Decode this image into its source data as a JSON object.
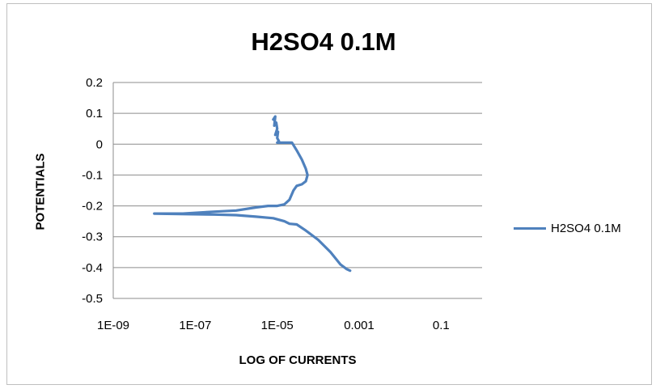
{
  "chart_data": {
    "type": "line",
    "title": "H2SO4 0.1M",
    "xlabel": "LOG OF CURRENTS",
    "ylabel": "POTENTIALS",
    "x_scale": "log",
    "xlim": [
      1e-09,
      1
    ],
    "ylim": [
      -0.5,
      0.2
    ],
    "x_ticks": [
      1e-09,
      1e-07,
      1e-05,
      0.001,
      0.1
    ],
    "x_tick_labels": [
      "1E-09",
      "1E-07",
      "1E-05",
      "0.001",
      "0.1"
    ],
    "y_ticks": [
      0.2,
      0.1,
      0,
      -0.1,
      -0.2,
      -0.3,
      -0.4,
      -0.5
    ],
    "y_tick_labels": [
      "0.2",
      "0.1",
      "0",
      "-0.1",
      "-0.2",
      "-0.3",
      "-0.4",
      "-0.5"
    ],
    "grid": "horizontal",
    "legend": "right",
    "series": [
      {
        "name": "H2SO4 0.1M",
        "color": "#4f81bd",
        "points": [
          [
            8e-06,
            0.08
          ],
          [
            9e-06,
            0.09
          ],
          [
            8.5e-06,
            0.06
          ],
          [
            9.5e-06,
            0.07
          ],
          [
            1e-05,
            0.05
          ],
          [
            9e-06,
            0.03
          ],
          [
            1.05e-05,
            0.04
          ],
          [
            1e-05,
            0.02
          ],
          [
            1.1e-05,
            0.01
          ],
          [
            1e-05,
            0.005
          ],
          [
            1.5e-05,
            0.005
          ],
          [
            2.3e-05,
            0.005
          ],
          [
            3e-05,
            -0.02
          ],
          [
            4e-05,
            -0.05
          ],
          [
            5e-05,
            -0.08
          ],
          [
            5.5e-05,
            -0.1
          ],
          [
            5e-05,
            -0.12
          ],
          [
            4e-05,
            -0.13
          ],
          [
            3e-05,
            -0.135
          ],
          [
            2.5e-05,
            -0.15
          ],
          [
            2e-05,
            -0.18
          ],
          [
            1.5e-05,
            -0.195
          ],
          [
            1e-05,
            -0.2
          ],
          [
            6e-06,
            -0.2
          ],
          [
            3e-06,
            -0.205
          ],
          [
            1e-06,
            -0.215
          ],
          [
            2e-07,
            -0.22
          ],
          [
            5e-08,
            -0.225
          ],
          [
            1e-08,
            -0.225
          ],
          [
            3e-07,
            -0.228
          ],
          [
            1e-06,
            -0.23
          ],
          [
            3e-06,
            -0.235
          ],
          [
            8e-06,
            -0.24
          ],
          [
            1.5e-05,
            -0.25
          ],
          [
            2e-05,
            -0.258
          ],
          [
            3e-05,
            -0.26
          ],
          [
            5e-05,
            -0.28
          ],
          [
            0.0001,
            -0.31
          ],
          [
            0.0002,
            -0.35
          ],
          [
            0.00035,
            -0.39
          ],
          [
            0.0005,
            -0.405
          ],
          [
            0.0006,
            -0.41
          ]
        ]
      }
    ]
  }
}
